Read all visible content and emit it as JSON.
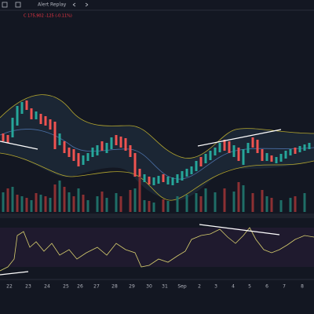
{
  "toolbar": {
    "alert": "Alert",
    "replay": "Replay"
  },
  "legend": {
    "price": "C 175,902 -125 (-0.11%)"
  },
  "x_axis": {
    "labels": [
      "22",
      "23",
      "24",
      "25",
      "26",
      "27",
      "28",
      "29",
      "30",
      "31",
      "Sep",
      "2",
      "3",
      "4",
      "5",
      "6",
      "7",
      "8"
    ]
  }
}
